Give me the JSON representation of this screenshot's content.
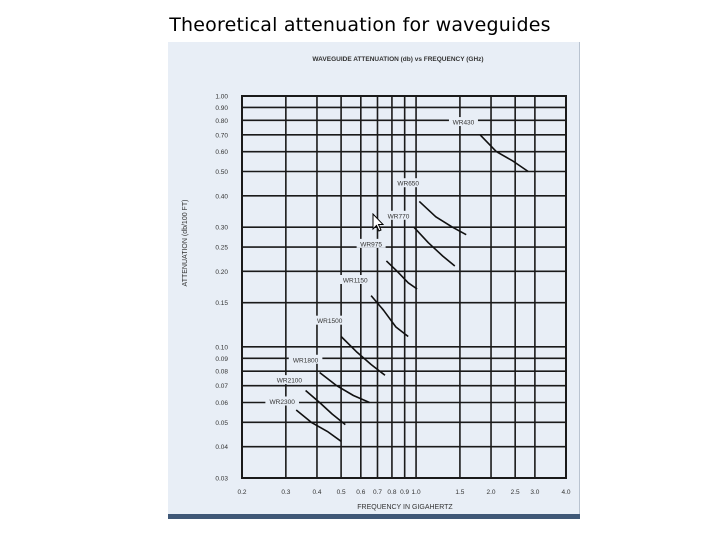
{
  "slide": {
    "title": "Theoretical attenuation for waveguides"
  },
  "chart_data": {
    "type": "line",
    "title": "WAVEGUIDE ATTENUATION (db) vs FREQUENCY (GHz)",
    "xlabel": "FREQUENCY IN GIGAHERTZ",
    "ylabel": "ATTENUATION (db/100 FT)",
    "xscale": "log",
    "yscale": "log",
    "xlim": [
      0.2,
      4.0
    ],
    "ylim": [
      0.03,
      1.0
    ],
    "grid": true,
    "legend": "inline labels",
    "x_ticks": [
      0.2,
      0.3,
      0.4,
      0.5,
      0.6,
      0.7,
      0.8,
      0.9,
      1.0,
      1.5,
      2.0,
      2.5,
      3.0,
      4.0
    ],
    "x_tick_labels": [
      "0.2",
      "0.3",
      "0.4",
      "0.5",
      "0.6",
      "0.7",
      "0.8",
      "0.9",
      "1.0",
      "1.5",
      "2.0",
      "2.5",
      "3.0",
      "4.0"
    ],
    "y_ticks": [
      1.0,
      0.9,
      0.8,
      0.7,
      0.6,
      0.5,
      0.4,
      0.3,
      0.25,
      0.2,
      0.15,
      0.1,
      0.09,
      0.08,
      0.07,
      0.06,
      0.05,
      0.04,
      0.03
    ],
    "y_tick_labels": [
      "1.00",
      "0.90",
      "0.80",
      "0.70",
      "0.60",
      "0.50",
      "0.40",
      "0.30",
      "0.25",
      "0.20",
      "0.15",
      "0.10",
      "0.09",
      "0.08",
      "0.07",
      "0.06",
      "0.05",
      "0.04",
      "0.03"
    ],
    "series": [
      {
        "name": "WR430",
        "x": [
          1.81,
          2.1,
          2.45,
          2.82
        ],
        "y": [
          0.7,
          0.6,
          0.55,
          0.5
        ],
        "label_at": [
          1.55,
          0.78
        ]
      },
      {
        "name": "WR650",
        "x": [
          1.03,
          1.2,
          1.4,
          1.59
        ],
        "y": [
          0.38,
          0.33,
          0.3,
          0.28
        ],
        "label_at": [
          0.93,
          0.445
        ]
      },
      {
        "name": "WR770",
        "x": [
          0.98,
          1.12,
          1.28,
          1.43
        ],
        "y": [
          0.3,
          0.26,
          0.23,
          0.21
        ],
        "label_at": [
          0.85,
          0.33
        ]
      },
      {
        "name": "WR975",
        "x": [
          0.76,
          0.84,
          0.93,
          1.01
        ],
        "y": [
          0.22,
          0.2,
          0.18,
          0.17
        ],
        "label_at": [
          0.66,
          0.255
        ]
      },
      {
        "name": "WR1150",
        "x": [
          0.66,
          0.74,
          0.83,
          0.93
        ],
        "y": [
          0.16,
          0.14,
          0.12,
          0.11
        ],
        "label_at": [
          0.57,
          0.183
        ]
      },
      {
        "name": "WR1500",
        "x": [
          0.5,
          0.58,
          0.66,
          0.75
        ],
        "y": [
          0.11,
          0.095,
          0.085,
          0.077
        ],
        "label_at": [
          0.45,
          0.126
        ]
      },
      {
        "name": "WR1800",
        "x": [
          0.41,
          0.48,
          0.56,
          0.65
        ],
        "y": [
          0.079,
          0.07,
          0.064,
          0.06
        ],
        "label_at": [
          0.36,
          0.088
        ]
      },
      {
        "name": "WR2100",
        "x": [
          0.36,
          0.41,
          0.46,
          0.52
        ],
        "y": [
          0.067,
          0.06,
          0.054,
          0.049
        ],
        "label_at": [
          0.31,
          0.073
        ]
      },
      {
        "name": "WR2300",
        "x": [
          0.33,
          0.38,
          0.44,
          0.5
        ],
        "y": [
          0.056,
          0.05,
          0.046,
          0.042
        ],
        "label_at": [
          0.29,
          0.06
        ]
      }
    ]
  },
  "cursor": {
    "icon": "mouse-pointer-icon"
  }
}
